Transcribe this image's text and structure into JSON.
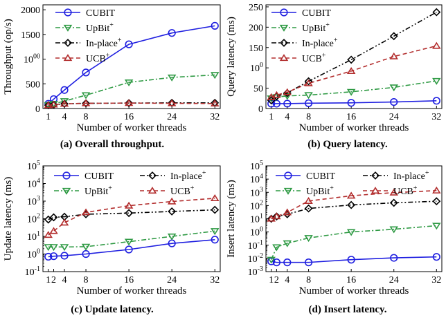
{
  "chart_data": [
    {
      "type": "line",
      "caption": "(a) Overall throughput.",
      "xlabel": "Number of worker threads",
      "ylabel": "Throughput (op/s)",
      "x": [
        1,
        2,
        4,
        8,
        16,
        24,
        32
      ],
      "xlim": [
        0,
        33
      ],
      "ylim": [
        0,
        2100
      ],
      "log": false,
      "xticks": [
        "1",
        "4",
        "8",
        "16",
        "24",
        "32"
      ],
      "xtick_values": [
        1,
        4,
        8,
        16,
        24,
        32
      ],
      "yticks": [
        "0",
        "500",
        "1000",
        "1500",
        "2000"
      ],
      "ytick_values": [
        0,
        500,
        1000,
        1500,
        2000
      ],
      "series": [
        {
          "name": "CUBIT",
          "values": [
            95,
            190,
            375,
            730,
            1300,
            1530,
            1675
          ]
        },
        {
          "name": "UpBit",
          "sup": "+",
          "values": [
            70,
            95,
            150,
            270,
            530,
            630,
            680
          ]
        },
        {
          "name": "In-place",
          "sup": "+",
          "values": [
            65,
            75,
            95,
            105,
            110,
            115,
            115
          ]
        },
        {
          "name": "UCB",
          "sup": "+",
          "values": [
            65,
            80,
            95,
            105,
            110,
            105,
            100
          ]
        }
      ]
    },
    {
      "type": "line",
      "caption": "(b) Query latency.",
      "xlabel": "Number of worker threads",
      "ylabel": "Query latency (ms)",
      "x": [
        1,
        2,
        4,
        8,
        16,
        24,
        32
      ],
      "xlim": [
        0,
        33
      ],
      "ylim": [
        0,
        255
      ],
      "log": false,
      "xticks": [
        "1",
        "4",
        "8",
        "16",
        "24",
        "32"
      ],
      "xtick_values": [
        1,
        4,
        8,
        16,
        24,
        32
      ],
      "yticks": [
        "0",
        "50",
        "100",
        "150",
        "200",
        "250"
      ],
      "ytick_values": [
        0,
        50,
        100,
        150,
        200,
        250
      ],
      "series": [
        {
          "name": "CUBIT",
          "values": [
            12,
            12,
            12,
            13,
            14,
            16,
            19
          ]
        },
        {
          "name": "UpBit",
          "sup": "+",
          "values": [
            25,
            28,
            31,
            33,
            41,
            52,
            68
          ]
        },
        {
          "name": "In-place",
          "sup": "+",
          "values": [
            20,
            30,
            38,
            67,
            120,
            178,
            237
          ]
        },
        {
          "name": "UCB",
          "sup": "+",
          "values": [
            28,
            33,
            40,
            62,
            92,
            128,
            154
          ]
        }
      ]
    },
    {
      "type": "line",
      "caption": "(c) Update latency.",
      "xlabel": "Number of worker threads",
      "ylabel": "Update latency (ms)",
      "x": [
        1,
        2,
        4,
        8,
        16,
        24,
        32
      ],
      "xlim": [
        0,
        33
      ],
      "ylim": [
        0.1,
        100000
      ],
      "log": true,
      "xticks": [
        "1",
        "2",
        "4",
        "8",
        "16",
        "24",
        "32"
      ],
      "xtick_values": [
        1,
        2,
        4,
        8,
        16,
        24,
        32
      ],
      "yticks": [
        "10-1",
        "100",
        "101",
        "102",
        "103",
        "104",
        "105"
      ],
      "ytick_values": [
        0.1,
        1,
        10,
        100,
        1000,
        10000,
        100000
      ],
      "series": [
        {
          "name": "CUBIT",
          "values": [
            0.7,
            0.75,
            0.8,
            1.0,
            1.8,
            4.0,
            6.5
          ]
        },
        {
          "name": "UpBit",
          "sup": "+",
          "values": [
            2.5,
            2.5,
            2.5,
            2.6,
            5.0,
            10,
            20
          ]
        },
        {
          "name": "In-place",
          "sup": "+",
          "values": [
            90,
            120,
            130,
            180,
            210,
            260,
            320
          ]
        },
        {
          "name": "UCB",
          "sup": "+",
          "values": [
            12,
            20,
            60,
            230,
            550,
            950,
            1450
          ]
        }
      ]
    },
    {
      "type": "line",
      "caption": "(d) Insert latency.",
      "xlabel": "Number of worker threads",
      "ylabel": "Insert latency (ms)",
      "x": [
        1,
        2,
        4,
        8,
        16,
        24,
        32
      ],
      "xlim": [
        0,
        33
      ],
      "ylim": [
        0.001,
        100000
      ],
      "log": true,
      "xticks": [
        "1",
        "2",
        "4",
        "8",
        "16",
        "24",
        "32"
      ],
      "xtick_values": [
        1,
        2,
        4,
        8,
        16,
        24,
        32
      ],
      "yticks": [
        "10-3",
        "10-2",
        "10-1",
        "100",
        "101",
        "102",
        "103",
        "104",
        "105"
      ],
      "ytick_values": [
        0.001,
        0.01,
        0.1,
        1,
        10,
        100,
        1000,
        10000,
        100000
      ],
      "series": [
        {
          "name": "CUBIT",
          "values": [
            0.006,
            0.005,
            0.005,
            0.005,
            0.008,
            0.011,
            0.013
          ]
        },
        {
          "name": "UpBit",
          "sup": "+",
          "values": [
            0.008,
            0.07,
            0.14,
            0.35,
            1.0,
            1.6,
            3.0
          ]
        },
        {
          "name": "In-place",
          "sup": "+",
          "values": [
            10,
            15,
            22,
            60,
            110,
            160,
            210
          ]
        },
        {
          "name": "UCB",
          "sup": "+",
          "values": [
            10,
            15,
            30,
            220,
            550,
            950,
            1350
          ]
        }
      ]
    }
  ],
  "series_colors": [
    "#1f1fe0",
    "#2f9a44",
    "#000000",
    "#b22c2c"
  ],
  "series_markers": [
    "circle",
    "triangle-down",
    "diamond",
    "triangle-up"
  ],
  "series_dashes": [
    "solid",
    "dash-dot",
    "dash-dot-dot",
    "dashed"
  ]
}
